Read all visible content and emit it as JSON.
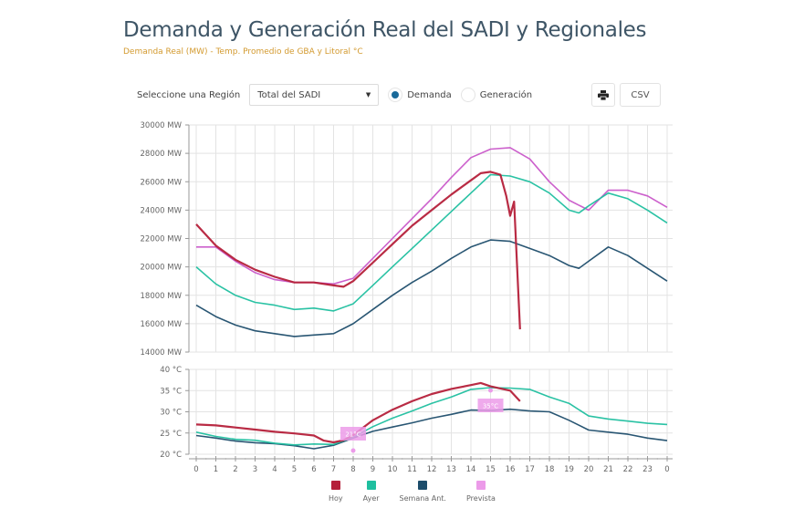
{
  "header": {
    "title": "Demanda y Generación Real del SADI y Regionales",
    "subtitle": "Demanda Real (MW) - Temp. Promedio de GBA y Litoral °C"
  },
  "toolbar": {
    "region_label": "Seleccione una Región",
    "region_value": "Total del SADI",
    "radio_demanda": "Demanda",
    "radio_generacion": "Generación",
    "selected_radio": "Demanda",
    "print_icon": "printer-icon",
    "csv_label": "CSV"
  },
  "colors": {
    "hoy": "#b5203a",
    "ayer": "#1fbf9f",
    "semana": "#1d4d6b",
    "prevista": "#c957c9",
    "prevista_legend": "#ec9be9",
    "grid": "#e3e3e3",
    "axis_text": "#666666"
  },
  "legend": [
    {
      "key": "hoy",
      "label": "Hoy"
    },
    {
      "key": "ayer",
      "label": "Ayer"
    },
    {
      "key": "semana",
      "label": "Semana Ant."
    },
    {
      "key": "prevista",
      "label": "Prevista"
    }
  ],
  "chart_data": [
    {
      "type": "line",
      "title": "Demanda Real (MW)",
      "xlabel": "",
      "ylabel": "MW",
      "xlim": [
        0,
        24
      ],
      "ylim": [
        14000,
        30000
      ],
      "grid": true,
      "yticks": [
        14000,
        16000,
        18000,
        20000,
        22000,
        24000,
        26000,
        28000,
        30000
      ],
      "ytick_labels": [
        "14000 MW",
        "16000 MW",
        "18000 MW",
        "20000 MW",
        "22000 MW",
        "24000 MW",
        "26000 MW",
        "28000 MW",
        "30000 MW"
      ],
      "series": [
        {
          "name": "Prevista",
          "key": "prevista",
          "x": [
            0,
            1,
            2,
            3,
            4,
            5,
            6,
            7,
            8,
            9,
            10,
            11,
            12,
            13,
            14,
            15,
            16,
            17,
            18,
            19,
            20,
            21,
            22,
            23,
            24
          ],
          "y": [
            21400,
            21400,
            20400,
            19600,
            19100,
            18900,
            18900,
            18800,
            19200,
            20600,
            22000,
            23400,
            24800,
            26300,
            27700,
            28300,
            28400,
            27600,
            26000,
            24700,
            24000,
            25400,
            25400,
            25000,
            24200
          ]
        },
        {
          "name": "Semana Ant.",
          "key": "semana",
          "x": [
            0,
            1,
            2,
            3,
            4,
            5,
            6,
            7,
            8,
            9,
            10,
            11,
            12,
            13,
            14,
            15,
            16,
            17,
            18,
            19,
            19.5,
            20,
            21,
            22,
            23,
            24
          ],
          "y": [
            17300,
            16500,
            15900,
            15500,
            15300,
            15100,
            15200,
            15300,
            16000,
            17000,
            18000,
            18900,
            19700,
            20600,
            21400,
            21900,
            21800,
            21300,
            20800,
            20100,
            19900,
            20400,
            21400,
            20800,
            19900,
            19000
          ]
        },
        {
          "name": "Ayer",
          "key": "ayer",
          "x": [
            0,
            1,
            2,
            3,
            4,
            5,
            6,
            7,
            8,
            9,
            10,
            11,
            12,
            13,
            14,
            15,
            16,
            17,
            18,
            19,
            19.5,
            20,
            21,
            22,
            23,
            24
          ],
          "y": [
            20000,
            18800,
            18000,
            17500,
            17300,
            17000,
            17100,
            16900,
            17400,
            18700,
            20000,
            21300,
            22600,
            23900,
            25200,
            26500,
            26400,
            26000,
            25200,
            24000,
            23800,
            24300,
            25200,
            24800,
            24000,
            23100
          ]
        },
        {
          "name": "Hoy",
          "key": "hoy",
          "x": [
            0,
            1,
            2,
            3,
            4,
            5,
            6,
            7,
            7.5,
            8,
            9,
            10,
            11,
            12,
            13,
            14,
            14.5,
            15,
            15.5,
            15.8,
            16,
            16.2,
            16.5
          ],
          "y": [
            23000,
            21500,
            20500,
            19800,
            19300,
            18900,
            18900,
            18700,
            18600,
            19000,
            20300,
            21600,
            22900,
            24000,
            25100,
            26100,
            26600,
            26700,
            26500,
            25000,
            23600,
            24600,
            15600
          ]
        }
      ]
    },
    {
      "type": "line",
      "title": "Temp. Promedio de GBA y Litoral (°C)",
      "xlabel": "",
      "ylabel": "°C",
      "xlim": [
        0,
        24
      ],
      "ylim": [
        20,
        40
      ],
      "grid": true,
      "yticks": [
        20,
        25,
        30,
        35,
        40
      ],
      "ytick_labels": [
        "20 °C",
        "25 °C",
        "30 °C",
        "35 °C",
        "40 °C"
      ],
      "xticks": [
        0,
        1,
        2,
        3,
        4,
        5,
        6,
        7,
        8,
        9,
        10,
        11,
        12,
        13,
        14,
        15,
        16,
        17,
        18,
        19,
        20,
        21,
        22,
        23,
        24
      ],
      "xtick_labels": [
        "0",
        "1",
        "2",
        "3",
        "4",
        "5",
        "6",
        "7",
        "8",
        "9",
        "10",
        "11",
        "12",
        "13",
        "14",
        "15",
        "16",
        "17",
        "18",
        "19",
        "20",
        "21",
        "22",
        "23",
        "0"
      ],
      "series": [
        {
          "name": "Semana Ant.",
          "key": "semana",
          "x": [
            0,
            1,
            2,
            3,
            4,
            5,
            6,
            7,
            8,
            9,
            10,
            11,
            12,
            13,
            14,
            15,
            16,
            17,
            18,
            19,
            20,
            21,
            22,
            23,
            24
          ],
          "y": [
            24.4,
            23.8,
            23.1,
            22.7,
            22.5,
            22.0,
            21.3,
            22.1,
            23.8,
            25.4,
            26.4,
            27.4,
            28.5,
            29.4,
            30.4,
            30.3,
            30.6,
            30.2,
            30.0,
            28.0,
            25.7,
            25.2,
            24.7,
            23.8,
            23.2
          ]
        },
        {
          "name": "Ayer",
          "key": "ayer",
          "x": [
            0,
            1,
            2,
            3,
            4,
            5,
            6,
            7,
            8,
            9,
            10,
            11,
            12,
            13,
            14,
            15,
            16,
            17,
            18,
            19,
            20,
            21,
            22,
            23,
            24
          ],
          "y": [
            25.2,
            24.2,
            23.5,
            23.3,
            22.6,
            22.2,
            22.4,
            22.3,
            24.0,
            26.5,
            28.5,
            30.2,
            32.0,
            33.5,
            35.3,
            35.7,
            35.6,
            35.3,
            33.5,
            32.0,
            29.0,
            28.3,
            27.8,
            27.3,
            27.0
          ]
        },
        {
          "name": "Hoy",
          "key": "hoy",
          "x": [
            0,
            1,
            2,
            3,
            4,
            5,
            6,
            6.5,
            7,
            7.5,
            8,
            9,
            10,
            11,
            12,
            13,
            14,
            14.5,
            15,
            16,
            16.5
          ],
          "y": [
            27.0,
            26.8,
            26.3,
            25.8,
            25.3,
            24.9,
            24.4,
            23.2,
            22.8,
            23.3,
            24.5,
            28.0,
            30.5,
            32.5,
            34.2,
            35.4,
            36.3,
            36.8,
            36.0,
            35.0,
            32.5
          ]
        }
      ],
      "annotations": [
        {
          "series": "Prevista",
          "type": "min",
          "x": 8,
          "y": 21,
          "label": "21°C"
        },
        {
          "series": "Prevista",
          "type": "max",
          "x": 15,
          "y": 35,
          "label": "35°C"
        }
      ]
    }
  ]
}
